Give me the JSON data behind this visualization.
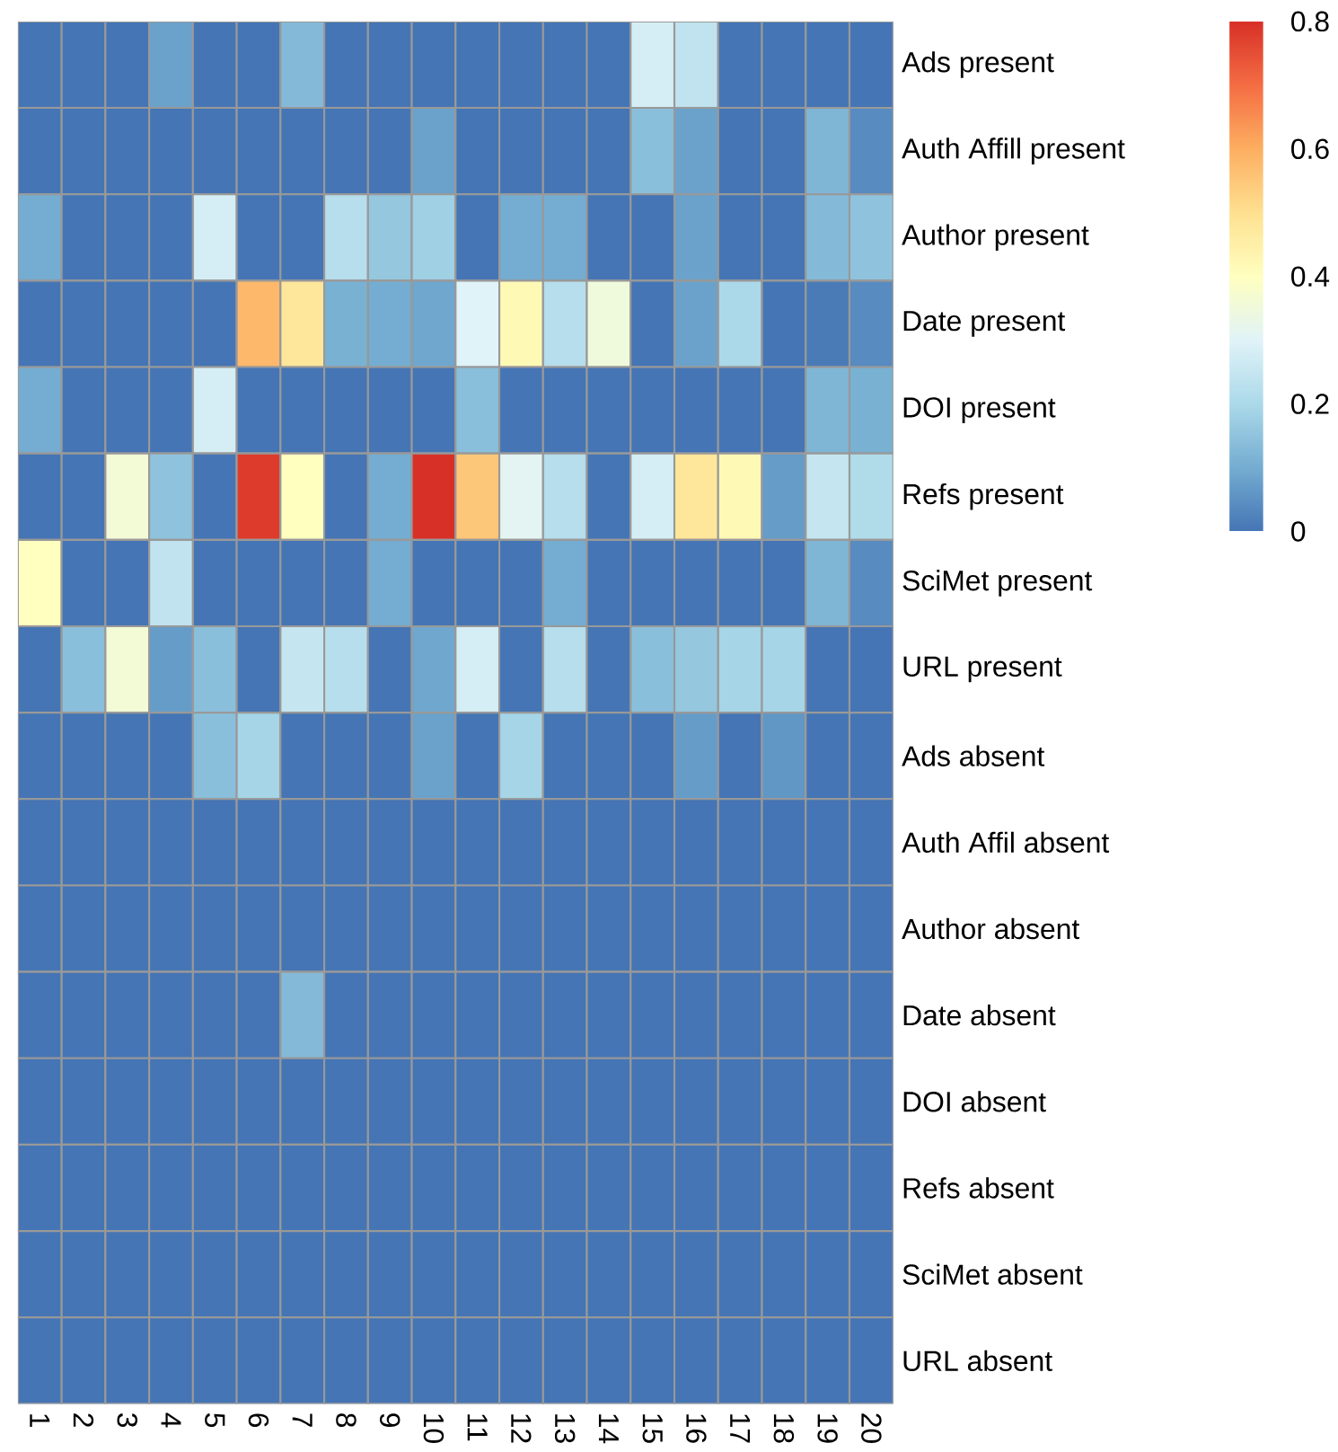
{
  "chart_data": {
    "type": "heatmap",
    "categories": [
      "1",
      "2",
      "3",
      "4",
      "5",
      "6",
      "7",
      "8",
      "9",
      "10",
      "11",
      "12",
      "13",
      "14",
      "15",
      "16",
      "17",
      "18",
      "19",
      "20"
    ],
    "y_categories": [
      "Ads present",
      "Auth Affill present",
      "Author present",
      "Date present",
      "DOI present",
      "Refs present",
      "SciMet present",
      "URL present",
      "Ads absent",
      "Auth Affil absent",
      "Author absent",
      "Date absent",
      "DOI absent",
      "Refs absent",
      "SciMet absent",
      "URL absent"
    ],
    "cells": [
      [
        0,
        0,
        0,
        0.08,
        0,
        0,
        0.13,
        0,
        0,
        0,
        0,
        0,
        0,
        0,
        0.28,
        0.24,
        0,
        0,
        0,
        0
      ],
      [
        0,
        0,
        0,
        0,
        0,
        0,
        0,
        0,
        0,
        0.08,
        0,
        0,
        0,
        0,
        0.14,
        0.08,
        0,
        0,
        0.12,
        0.04
      ],
      [
        0.1,
        0,
        0,
        0,
        0.28,
        0,
        0,
        0.22,
        0.16,
        0.18,
        0,
        0.1,
        0.1,
        0,
        0,
        0.08,
        0,
        0,
        0.13,
        0.15
      ],
      [
        0,
        0,
        0,
        0,
        0,
        0.58,
        0.48,
        0.11,
        0.1,
        0.09,
        0.3,
        0.42,
        0.22,
        0.35,
        0,
        0.08,
        0.2,
        0,
        0.01,
        0.04
      ],
      [
        0.1,
        0,
        0,
        0,
        0.28,
        0,
        0,
        0,
        0,
        0,
        0.14,
        0,
        0,
        0,
        0,
        0,
        0,
        0,
        0.12,
        0.11
      ],
      [
        0,
        0,
        0.36,
        0.15,
        0,
        0.78,
        0.4,
        0,
        0.1,
        0.8,
        0.55,
        0.31,
        0.22,
        0,
        0.28,
        0.48,
        0.42,
        0.07,
        0.25,
        0.21
      ],
      [
        0.4,
        0,
        0,
        0.24,
        0,
        0,
        0,
        0,
        0.1,
        0,
        0,
        0,
        0.1,
        0,
        0,
        0,
        0,
        0,
        0.12,
        0.04
      ],
      [
        0,
        0.14,
        0.36,
        0.07,
        0.14,
        0,
        0.25,
        0.22,
        0,
        0.09,
        0.28,
        0,
        0.22,
        0,
        0.14,
        0.16,
        0.19,
        0.19,
        0,
        0
      ],
      [
        0,
        0,
        0,
        0,
        0.14,
        0.19,
        0,
        0,
        0,
        0.08,
        0,
        0.19,
        0,
        0,
        0,
        0.07,
        0,
        0.06,
        0,
        0
      ],
      [
        0,
        0,
        0,
        0,
        0,
        0,
        0,
        0,
        0,
        0,
        0,
        0,
        0,
        0,
        0,
        0,
        0,
        0,
        0,
        0
      ],
      [
        0,
        0,
        0,
        0,
        0,
        0,
        0,
        0,
        0,
        0,
        0,
        0,
        0,
        0,
        0,
        0,
        0,
        0,
        0,
        0
      ],
      [
        0,
        0,
        0,
        0,
        0,
        0,
        0.13,
        0,
        0,
        0,
        0,
        0,
        0,
        0,
        0,
        0,
        0,
        0,
        0,
        0
      ],
      [
        0,
        0,
        0,
        0,
        0,
        0,
        0,
        0,
        0,
        0,
        0,
        0,
        0,
        0,
        0,
        0,
        0,
        0,
        0,
        0
      ],
      [
        0,
        0,
        0,
        0,
        0,
        0,
        0,
        0,
        0,
        0,
        0,
        0,
        0,
        0,
        0,
        0,
        0,
        0,
        0,
        0
      ],
      [
        0,
        0,
        0,
        0,
        0,
        0,
        0,
        0,
        0,
        0,
        0,
        0,
        0,
        0,
        0,
        0,
        0,
        0,
        0,
        0
      ],
      [
        0,
        0,
        0,
        0,
        0,
        0,
        0,
        0,
        0,
        0,
        0,
        0,
        0,
        0,
        0,
        0,
        0,
        0,
        0,
        0
      ]
    ],
    "clim": [
      0,
      0.8
    ],
    "cticks": [
      0,
      0.2,
      0.4,
      0.6,
      0.8
    ]
  }
}
